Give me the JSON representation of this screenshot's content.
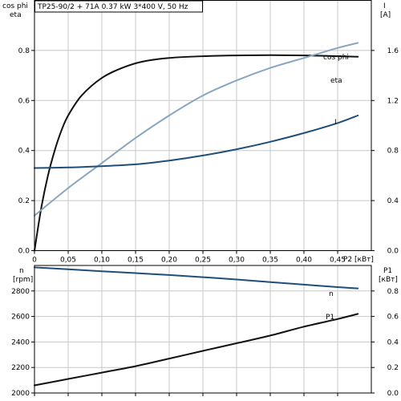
{
  "colors": {
    "eta": "#111111",
    "cos_phi": "#8aa6bf",
    "I": "#1f4e7a",
    "n": "#1f4e7a",
    "P1": "#111111",
    "grid": "#c8c8c8"
  },
  "chart_data": [
    {
      "type": "line",
      "title": "TP25-90/2 + 71A   0.37 kW   3*400 V, 50 Hz",
      "xlabel": "P2 [кВт]",
      "ylabel_left_line1": "cos phi",
      "ylabel_left_line2": "eta",
      "ylabel_right_line1": "I",
      "ylabel_right_line2": "[A]",
      "xlim": [
        0,
        0.5
      ],
      "ylim": [
        0,
        1.0
      ],
      "ylim_right": [
        0,
        2.0
      ],
      "x_ticks": [
        "0",
        "0,05",
        "0,10",
        "0,15",
        "0,20",
        "0,25",
        "0,30",
        "0,35",
        "0,40",
        "0,45"
      ],
      "x_tick_values": [
        0,
        0.05,
        0.1,
        0.15,
        0.2,
        0.25,
        0.3,
        0.35,
        0.4,
        0.45
      ],
      "y_ticks": [
        "0.0",
        "0.2",
        "0.4",
        "0.6",
        "0.8"
      ],
      "y_tick_values": [
        0,
        0.2,
        0.4,
        0.6,
        0.8
      ],
      "y_ticks_right": [
        "0.0",
        "0.4",
        "0.8",
        "1.2",
        "1.6"
      ],
      "y_tick_values_right": [
        0,
        0.4,
        0.8,
        1.2,
        1.6
      ],
      "grid": true,
      "series": [
        {
          "name": "eta",
          "axis": "left",
          "x": [
            0,
            0.01,
            0.02,
            0.03,
            0.04,
            0.05,
            0.07,
            0.1,
            0.13,
            0.16,
            0.2,
            0.25,
            0.3,
            0.35,
            0.4,
            0.45,
            0.48
          ],
          "y": [
            0,
            0.17,
            0.3,
            0.4,
            0.48,
            0.54,
            0.62,
            0.69,
            0.73,
            0.755,
            0.77,
            0.777,
            0.78,
            0.781,
            0.78,
            0.777,
            0.775
          ]
        },
        {
          "name": "cos phi",
          "axis": "left",
          "x": [
            0,
            0.05,
            0.1,
            0.15,
            0.2,
            0.25,
            0.3,
            0.35,
            0.4,
            0.45,
            0.48
          ],
          "y": [
            0.14,
            0.25,
            0.35,
            0.45,
            0.54,
            0.62,
            0.68,
            0.73,
            0.77,
            0.81,
            0.83
          ]
        },
        {
          "name": "I",
          "axis": "right",
          "x": [
            0,
            0.05,
            0.1,
            0.15,
            0.2,
            0.25,
            0.3,
            0.35,
            0.4,
            0.45,
            0.48
          ],
          "y": [
            0.66,
            0.665,
            0.675,
            0.69,
            0.72,
            0.76,
            0.81,
            0.87,
            0.94,
            1.02,
            1.08
          ]
        }
      ]
    },
    {
      "type": "line",
      "xlim": [
        0,
        0.5
      ],
      "ylim": [
        2000,
        3000
      ],
      "ylim_right": [
        0,
        1.0
      ],
      "ylabel_left_line1": "n",
      "ylabel_left_line2": "[rpm]",
      "ylabel_right_line1": "P1",
      "ylabel_right_line2": "[кВт]",
      "y_ticks": [
        "2000",
        "2200",
        "2400",
        "2600",
        "2800"
      ],
      "y_tick_values": [
        2000,
        2200,
        2400,
        2600,
        2800
      ],
      "y_ticks_right": [
        "0.0",
        "0.2",
        "0.4",
        "0.6",
        "0.8"
      ],
      "y_tick_values_right": [
        0,
        0.2,
        0.4,
        0.6,
        0.8
      ],
      "grid": true,
      "series": [
        {
          "name": "n",
          "axis": "left",
          "x": [
            0,
            0.05,
            0.1,
            0.15,
            0.2,
            0.25,
            0.3,
            0.35,
            0.4,
            0.45,
            0.48
          ],
          "y": [
            2985,
            2970,
            2955,
            2940,
            2925,
            2908,
            2890,
            2870,
            2850,
            2830,
            2820
          ]
        },
        {
          "name": "P1",
          "axis": "right",
          "x": [
            0,
            0.05,
            0.1,
            0.15,
            0.2,
            0.25,
            0.3,
            0.35,
            0.4,
            0.45,
            0.48
          ],
          "y": [
            0.06,
            0.11,
            0.16,
            0.21,
            0.27,
            0.33,
            0.39,
            0.45,
            0.52,
            0.58,
            0.62
          ]
        }
      ]
    }
  ]
}
